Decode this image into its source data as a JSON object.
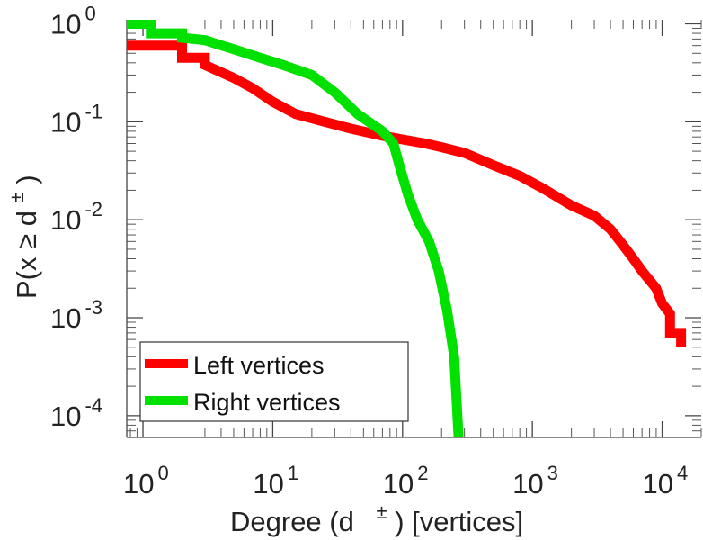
{
  "chart_data": {
    "type": "line",
    "title": "",
    "xlabel": "Degree (d ±) [vertices]",
    "xlabel_main": "Degree (d",
    "xlabel_sup": "±",
    "xlabel_tail": ") [vertices]",
    "ylabel_parts": {
      "open": "P(x ",
      "geq": "≥",
      "d": " d",
      "sup": "±",
      "close": ")"
    },
    "x_scale": "log",
    "y_scale": "log",
    "xlim": [
      0.75,
      20000
    ],
    "ylim": [
      6e-05,
      1.1
    ],
    "legend_position": "bottom-left",
    "x_ticks": [
      {
        "value": 1,
        "base": "10",
        "exp": "0"
      },
      {
        "value": 10,
        "base": "10",
        "exp": "1"
      },
      {
        "value": 100,
        "base": "10",
        "exp": "2"
      },
      {
        "value": 1000,
        "base": "10",
        "exp": "3"
      },
      {
        "value": 10000,
        "base": "10",
        "exp": "4"
      }
    ],
    "y_ticks": [
      {
        "value": 1,
        "base": "10",
        "exp": "0"
      },
      {
        "value": 0.1,
        "base": "10",
        "exp": "-1"
      },
      {
        "value": 0.01,
        "base": "10",
        "exp": "-2"
      },
      {
        "value": 0.001,
        "base": "10",
        "exp": "-3"
      },
      {
        "value": 0.0001,
        "base": "10",
        "exp": "-4"
      }
    ],
    "series": [
      {
        "name": "Left vertices",
        "color": "#ff0000",
        "points": [
          [
            0.75,
            0.6
          ],
          [
            2,
            0.6
          ],
          [
            2,
            0.45
          ],
          [
            3,
            0.45
          ],
          [
            3,
            0.38
          ],
          [
            4,
            0.32
          ],
          [
            5,
            0.28
          ],
          [
            7,
            0.22
          ],
          [
            10,
            0.16
          ],
          [
            15,
            0.12
          ],
          [
            25,
            0.1
          ],
          [
            40,
            0.085
          ],
          [
            70,
            0.072
          ],
          [
            100,
            0.066
          ],
          [
            150,
            0.06
          ],
          [
            200,
            0.055
          ],
          [
            300,
            0.048
          ],
          [
            500,
            0.036
          ],
          [
            800,
            0.028
          ],
          [
            1200,
            0.021
          ],
          [
            2000,
            0.014
          ],
          [
            3000,
            0.011
          ],
          [
            4000,
            0.008
          ],
          [
            5000,
            0.0055
          ],
          [
            6000,
            0.004
          ],
          [
            7000,
            0.003
          ],
          [
            9000,
            0.002
          ],
          [
            10000,
            0.0014
          ],
          [
            11500,
            0.0011
          ],
          [
            11500,
            0.0007
          ],
          [
            14000,
            0.0007
          ],
          [
            14000,
            0.0005
          ]
        ]
      },
      {
        "name": "Right vertices",
        "color": "#00e100",
        "points": [
          [
            0.75,
            1.0
          ],
          [
            1.15,
            1.0
          ],
          [
            1.15,
            0.8
          ],
          [
            2,
            0.8
          ],
          [
            2,
            0.72
          ],
          [
            3,
            0.68
          ],
          [
            5,
            0.55
          ],
          [
            8,
            0.45
          ],
          [
            12,
            0.38
          ],
          [
            20,
            0.3
          ],
          [
            30,
            0.2
          ],
          [
            45,
            0.12
          ],
          [
            70,
            0.08
          ],
          [
            85,
            0.06
          ],
          [
            95,
            0.035
          ],
          [
            110,
            0.018
          ],
          [
            130,
            0.01
          ],
          [
            160,
            0.006
          ],
          [
            190,
            0.003
          ],
          [
            220,
            0.0012
          ],
          [
            250,
            0.0004
          ],
          [
            270,
            6e-05
          ]
        ]
      }
    ]
  }
}
